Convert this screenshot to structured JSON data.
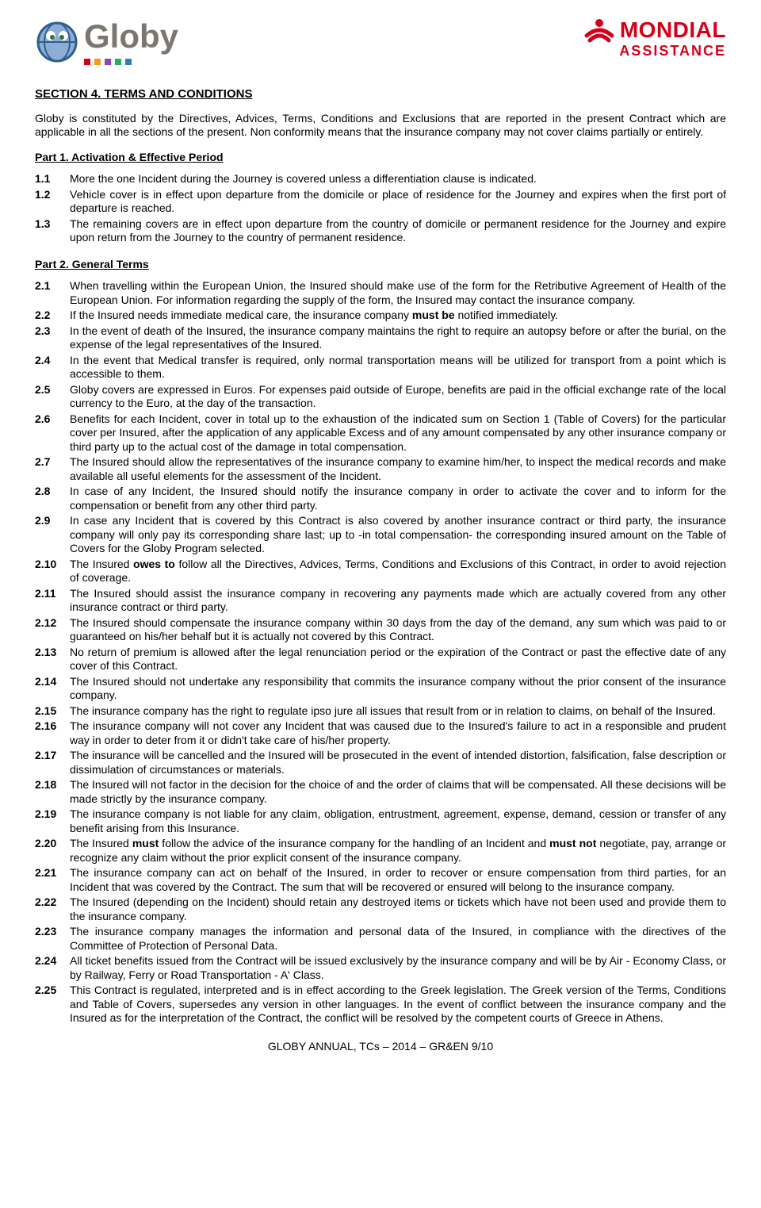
{
  "logos": {
    "globy_text": "Globy",
    "globy_text_color": "#7c766f",
    "mondial_text": "MONDIAL",
    "mondial_sub": "ASSISTANCE",
    "mondial_color": "#d40018"
  },
  "section_title": "SECTION 4. TERMS AND CONDITIONS",
  "intro": "Globy is constituted by the Directives, Advices, Terms, Conditions and Exclusions that are reported in the present Contract which are applicable in all the sections of the present. Non conformity means that the insurance company may not cover claims partially or entirely.",
  "part1": {
    "title": "Part 1. Activation & Effective Period",
    "items": [
      {
        "n": "1.1",
        "t": "More the one Incident during the Journey is covered unless a differentiation clause is indicated."
      },
      {
        "n": "1.2",
        "t": "Vehicle cover is in effect upon departure from the domicile or place of residence for the Journey and expires when the first port of departure is reached."
      },
      {
        "n": "1.3",
        "t": "The remaining covers are in effect upon departure from the country of domicile or permanent residence for the Journey and expire upon return from the Journey to the country of permanent residence."
      }
    ]
  },
  "part2": {
    "title": "Part 2. General Terms",
    "items": [
      {
        "n": "2.1",
        "t": "When travelling within the European Union, the Insured should make use of the form for the Retributive Agreement of Health of the European Union.  For information regarding the supply of the form, the Insured may contact the insurance company."
      },
      {
        "n": "2.2",
        "pre": "If the Insured needs immediate medical care, the insurance company ",
        "bold": "must be",
        "post": " notified immediately."
      },
      {
        "n": "2.3",
        "t": "In the event of death of the Insured, the insurance company maintains the right to require an autopsy before or after the burial, on the expense of the legal representatives of the Insured."
      },
      {
        "n": "2.4",
        "t": "In the event that Medical transfer is required, only normal transportation means will be utilized for transport from a point which is accessible to them."
      },
      {
        "n": "2.5",
        "t": "Globy covers are expressed in Euros. For expenses paid outside of Europe, benefits are paid in the official exchange rate of the local currency to the Euro, at the day of the transaction."
      },
      {
        "n": "2.6",
        "t": "Benefits for each Incident, cover in total up to the exhaustion of the indicated sum on Section 1 (Table of Covers) for the particular cover per Insured, after the application of any applicable Excess and of any amount compensated by any other insurance company or third party up to the actual cost of the damage in total compensation."
      },
      {
        "n": "2.7",
        "t": "The Insured should allow the representatives of the insurance company to examine him/her, to inspect the medical records and make available all useful elements for the assessment of the Incident."
      },
      {
        "n": "2.8",
        "t": "In case of any Incident, the Insured should notify the insurance company in order to activate the cover and to inform for the compensation or benefit from any other third party."
      },
      {
        "n": "2.9",
        "t": "In case any Incident that is covered by this Contract is also covered by another insurance contract or third party, the insurance company will only pay its corresponding share last; up to -in total compensation- the corresponding insured amount on the Table of Covers for the Globy Program selected."
      },
      {
        "n": "2.10",
        "pre": "The Insured ",
        "bold": "owes to",
        "post": " follow all the Directives, Advices, Terms, Conditions and Exclusions of this Contract, in order to avoid rejection of coverage."
      },
      {
        "n": "2.11",
        "t": "The Insured should assist the insurance company in recovering any payments made which are actually covered from any other insurance contract or third party."
      },
      {
        "n": "2.12",
        "t": "The Insured should compensate the insurance company within 30 days from the day of the demand, any sum which was paid to or guaranteed on his/her behalf but it is actually not covered by this Contract."
      },
      {
        "n": "2.13",
        "t": "No return of premium is allowed after the legal renunciation period or the expiration of the Contract or past the effective date of any cover of this Contract."
      },
      {
        "n": "2.14",
        "t": "The Insured should not undertake any responsibility that commits the insurance company without the prior consent of the insurance company."
      },
      {
        "n": "2.15",
        "t": "The insurance company has the right to regulate ipso jure all issues that result from or in relation to claims, on behalf of the Insured."
      },
      {
        "n": "2.16",
        "t": "The insurance company will not cover any Incident that was caused due to the Insured's failure to act in a responsible and prudent way in order to deter from it or didn't take care of his/her property."
      },
      {
        "n": "2.17",
        "t": "The insurance will be cancelled and the Insured will be prosecuted in the event of intended distortion, falsification, false description or dissimulation of circumstances or materials."
      },
      {
        "n": "2.18",
        "t": "The Insured will not factor in the decision for the choice of and the order of claims that will be compensated.  All these decisions will be made strictly by the insurance company."
      },
      {
        "n": "2.19",
        "t": "The insurance company is not liable for any claim, obligation, entrustment, agreement, expense, demand, cession or transfer of any benefit arising from this Insurance."
      },
      {
        "n": "2.20",
        "pre": "The Insured ",
        "bold": "must",
        "post": " follow the advice of the insurance company for the handling of an Incident and ",
        "bold2": "must not",
        "post2": " negotiate, pay, arrange or recognize any claim without the prior explicit consent of the insurance company."
      },
      {
        "n": "2.21",
        "t": "The insurance company can act on behalf of the Insured, in order to recover or ensure compensation from third parties, for an Incident that was covered by the Contract.  The sum that will be recovered or ensured will belong to the insurance company."
      },
      {
        "n": "2.22",
        "t": "The Insured (depending on the Incident) should retain any destroyed items or tickets which have not been used and provide them to the insurance company."
      },
      {
        "n": "2.23",
        "t": "The insurance company manages the information and personal data of the Insured, in compliance with the directives of the Committee of Protection of Personal Data."
      },
      {
        "n": "2.24",
        "t": "All ticket benefits issued from the Contract will be issued exclusively by the insurance company and will be by Air - Economy Class, or by Railway, Ferry or Road Transportation - A' Class."
      },
      {
        "n": "2.25",
        "t": "This Contract is regulated, interpreted and is in effect according to the Greek legislation.  The Greek version of the Terms, Conditions and Table of Covers, supersedes any version in other languages.  In the event of conflict between the insurance company and the Insured as for the interpretation of the Contract, the conflict will be resolved by the competent courts of Greece in Athens."
      }
    ]
  },
  "footer": "GLOBY ANNUAL, TCs – 2014 – GR&EN  9/10"
}
